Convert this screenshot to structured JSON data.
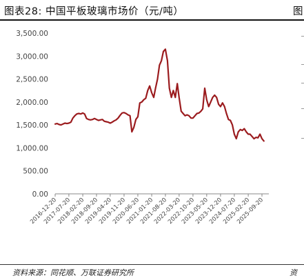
{
  "header": {
    "title": "图表28:  中国平板玻璃市场价（元/吨）",
    "right_cut_title": "图"
  },
  "footer": {
    "source": "资料来源：同花顺、万联证券研究所",
    "right_cut_source": "资"
  },
  "chart_data": {
    "type": "line",
    "title": "",
    "xlabel": "",
    "ylabel": "",
    "ylim": [
      0,
      3500
    ],
    "yticks": [
      0,
      500,
      1000,
      1500,
      2000,
      2500,
      3000,
      3500
    ],
    "ytick_labels": [
      "0.00",
      "500.00",
      "1,000.00",
      "1,500.00",
      "2,000.00",
      "2,500.00",
      "3,000.00",
      "3,500.00"
    ],
    "xticks": [
      "2016-12-20",
      "2017-07-20",
      "2018-02-20",
      "2018-09-20",
      "2019-04-20",
      "2019-11-20",
      "2020-06-20",
      "2021-01-20",
      "2021-08-20",
      "2022-03-20",
      "2022-10-20",
      "2023-05-20",
      "2023-12-20",
      "2024-07-20",
      "2025-02-20",
      "2025-09-20"
    ],
    "grid": false,
    "legend": "none",
    "series_color": "#9b1b1e",
    "series": [
      {
        "x": [
          "2016-12-20",
          "2017-01-20",
          "2017-02-20",
          "2017-03-20",
          "2017-04-20",
          "2017-05-20",
          "2017-06-20",
          "2017-07-20",
          "2017-08-20",
          "2017-09-20",
          "2017-10-20",
          "2017-11-20",
          "2017-12-20",
          "2018-01-20",
          "2018-02-20",
          "2018-03-20",
          "2018-04-20",
          "2018-05-20",
          "2018-06-20",
          "2018-07-20",
          "2018-08-20",
          "2018-09-20",
          "2018-10-20",
          "2018-11-20",
          "2018-12-20",
          "2019-01-20",
          "2019-02-20",
          "2019-03-20",
          "2019-04-20",
          "2019-05-20",
          "2019-06-20",
          "2019-07-20",
          "2019-08-20",
          "2019-09-20",
          "2019-10-20",
          "2019-11-20",
          "2019-12-20",
          "2020-01-20",
          "2020-02-20",
          "2020-03-20",
          "2020-04-20",
          "2020-05-20",
          "2020-06-20",
          "2020-07-20",
          "2020-08-20",
          "2020-09-20",
          "2020-10-20",
          "2020-11-20",
          "2020-12-20",
          "2021-01-20",
          "2021-02-20",
          "2021-03-20",
          "2021-04-20",
          "2021-05-20",
          "2021-06-20",
          "2021-07-20",
          "2021-08-20",
          "2021-09-20",
          "2021-10-20",
          "2021-11-20",
          "2021-12-20",
          "2022-01-20",
          "2022-02-20",
          "2022-03-20",
          "2022-04-20",
          "2022-05-20",
          "2022-06-20",
          "2022-07-20",
          "2022-08-20",
          "2022-09-20",
          "2022-10-20",
          "2022-11-20",
          "2022-12-20",
          "2023-01-20",
          "2023-02-20",
          "2023-03-20",
          "2023-04-20",
          "2023-05-20",
          "2023-06-20",
          "2023-07-20",
          "2023-08-20",
          "2023-09-20",
          "2023-10-20",
          "2023-11-20",
          "2023-12-20",
          "2024-01-20",
          "2024-02-20",
          "2024-03-20",
          "2024-04-20",
          "2024-05-20",
          "2024-06-20",
          "2024-07-20",
          "2024-08-20",
          "2024-09-20",
          "2024-10-20",
          "2024-11-20",
          "2024-12-20",
          "2025-01-20",
          "2025-02-20",
          "2025-03-20",
          "2025-04-20",
          "2025-05-20",
          "2025-06-20",
          "2025-07-20",
          "2025-08-20",
          "2025-09-20",
          "2025-10-20"
        ],
        "y": [
          1520,
          1530,
          1510,
          1500,
          1520,
          1540,
          1530,
          1540,
          1560,
          1650,
          1700,
          1740,
          1750,
          1740,
          1760,
          1740,
          1640,
          1620,
          1610,
          1620,
          1640,
          1620,
          1600,
          1610,
          1620,
          1580,
          1570,
          1560,
          1540,
          1560,
          1590,
          1610,
          1650,
          1710,
          1760,
          1770,
          1750,
          1720,
          1700,
          1350,
          1450,
          1620,
          1680,
          1980,
          2000,
          2050,
          2080,
          2250,
          2350,
          2200,
          2100,
          2300,
          2500,
          2800,
          2900,
          3100,
          3150,
          2900,
          2300,
          2100,
          2250,
          2100,
          2400,
          2100,
          1800,
          1750,
          1700,
          1720,
          1700,
          1650,
          1650,
          1700,
          1750,
          1760,
          1800,
          1850,
          2300,
          2050,
          1900,
          2000,
          2100,
          2150,
          2100,
          1950,
          1900,
          1980,
          1900,
          1750,
          1620,
          1600,
          1500,
          1300,
          1200,
          1350,
          1400,
          1380,
          1420,
          1350,
          1300,
          1300,
          1250,
          1200,
          1230,
          1220,
          1300,
          1200,
          1150
        ]
      }
    ]
  }
}
